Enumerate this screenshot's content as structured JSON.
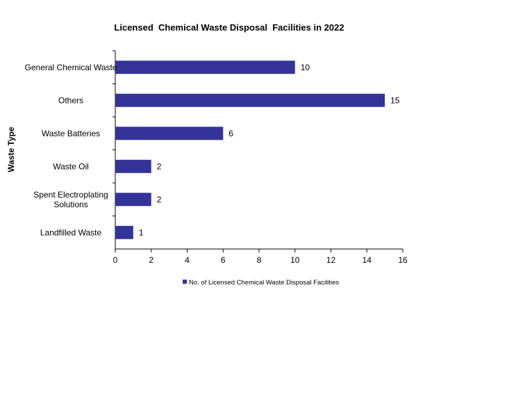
{
  "chart_data": {
    "type": "bar",
    "orientation": "horizontal",
    "title": "Licensed  Chemical Waste Disposal  Facilities in 2022",
    "xlabel": "",
    "ylabel": "Waste Type",
    "categories": [
      "General Chemical Waste",
      "Others",
      "Waste Batteries",
      "Waste Oil",
      "Spent Electroplating Solutions",
      "Landfilled Waste"
    ],
    "category_lines": [
      [
        "General Chemical Waste"
      ],
      [
        "Others"
      ],
      [
        "Waste Batteries"
      ],
      [
        "Waste Oil"
      ],
      [
        "Spent Electroplating",
        "Solutions"
      ],
      [
        "Landfilled Waste"
      ]
    ],
    "series": [
      {
        "name": "No. of Licensed Chemical Waste Disposal Facilities",
        "values": [
          10,
          15,
          6,
          2,
          2,
          1
        ],
        "color": "#333399"
      }
    ],
    "xlim": [
      0,
      16
    ],
    "xticks": [
      0,
      2,
      4,
      6,
      8,
      10,
      12,
      14,
      16
    ],
    "grid": false,
    "legend_position": "bottom",
    "data_labels": true
  }
}
